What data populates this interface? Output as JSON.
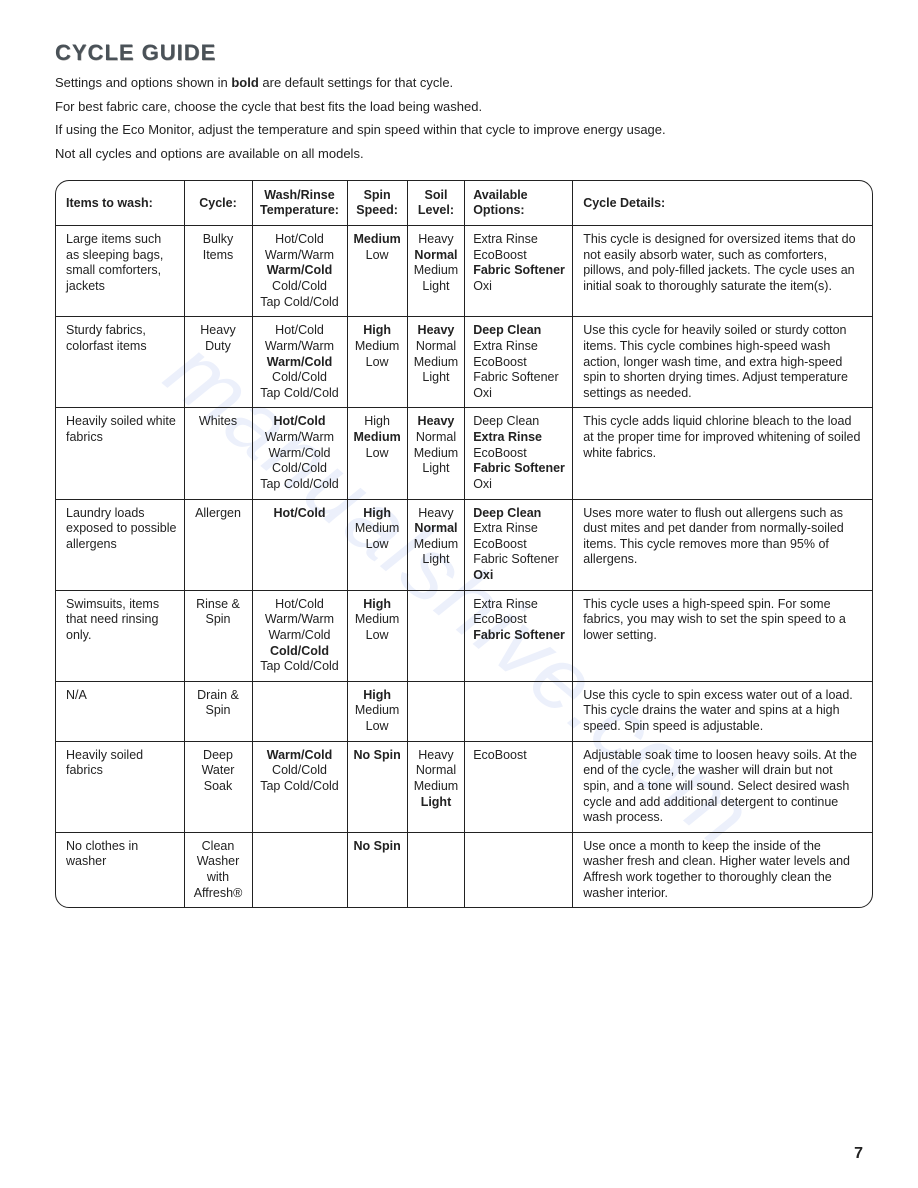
{
  "watermark": "manualshive.com",
  "page_number": "7",
  "title": "CYCLE GUIDE",
  "intro": {
    "l1a": "Settings and options shown in ",
    "l1b": "bold",
    "l1c": " are default settings for that cycle.",
    "l2": "For best fabric care, choose the cycle that best fits the load being washed.",
    "l3": "If using the Eco Monitor, adjust the temperature and spin speed within that cycle to improve energy usage.",
    "l4": "Not all cycles and options are available on all models."
  },
  "headers": {
    "items": "Items to wash:",
    "cycle": "Cycle:",
    "temp": "Wash/Rinse Temperature:",
    "spin": "Spin Speed:",
    "soil": "Soil Level:",
    "opts": "Available Options:",
    "details": "Cycle Details:"
  },
  "rows": [
    {
      "items": "Large items such as sleeping bags, small comforters, jackets",
      "cycle": "Bulky Items",
      "temp": [
        {
          "t": "Hot/Cold",
          "b": false
        },
        {
          "t": "Warm/Warm",
          "b": false
        },
        {
          "t": "Warm/Cold",
          "b": true
        },
        {
          "t": "Cold/Cold",
          "b": false
        },
        {
          "t": "Tap Cold/Cold",
          "b": false
        }
      ],
      "spin": [
        {
          "t": "Medium",
          "b": true
        },
        {
          "t": "Low",
          "b": false
        }
      ],
      "soil": [
        {
          "t": "Heavy",
          "b": false
        },
        {
          "t": "Normal",
          "b": true
        },
        {
          "t": "Medium",
          "b": false
        },
        {
          "t": "Light",
          "b": false
        }
      ],
      "opts": [
        {
          "t": "Extra Rinse",
          "b": false
        },
        {
          "t": "EcoBoost",
          "b": false
        },
        {
          "t": "Fabric Softener",
          "b": true
        },
        {
          "t": "Oxi",
          "b": false
        }
      ],
      "details": "This cycle is designed for oversized items that do not easily absorb water, such as comforters, pillows, and poly-filled jackets. The cycle uses an initial soak to thoroughly saturate the item(s)."
    },
    {
      "items": "Sturdy fabrics, colorfast items",
      "cycle": "Heavy Duty",
      "temp": [
        {
          "t": "Hot/Cold",
          "b": false
        },
        {
          "t": "Warm/Warm",
          "b": false
        },
        {
          "t": "Warm/Cold",
          "b": true
        },
        {
          "t": "Cold/Cold",
          "b": false
        },
        {
          "t": "Tap Cold/Cold",
          "b": false
        }
      ],
      "spin": [
        {
          "t": "High",
          "b": true
        },
        {
          "t": "Medium",
          "b": false
        },
        {
          "t": "Low",
          "b": false
        }
      ],
      "soil": [
        {
          "t": "Heavy",
          "b": true
        },
        {
          "t": "Normal",
          "b": false
        },
        {
          "t": "Medium",
          "b": false
        },
        {
          "t": "Light",
          "b": false
        }
      ],
      "opts": [
        {
          "t": "Deep Clean",
          "b": true
        },
        {
          "t": "Extra Rinse",
          "b": false
        },
        {
          "t": "EcoBoost",
          "b": false
        },
        {
          "t": "Fabric Softener",
          "b": false
        },
        {
          "t": "Oxi",
          "b": false
        }
      ],
      "details": "Use this cycle for heavily soiled or sturdy cotton items. This cycle combines high-speed wash action, longer wash time, and extra high-speed spin to shorten drying times. Adjust temperature settings as needed."
    },
    {
      "items": "Heavily soiled white fabrics",
      "cycle": "Whites",
      "temp": [
        {
          "t": "Hot/Cold",
          "b": true
        },
        {
          "t": "Warm/Warm",
          "b": false
        },
        {
          "t": "Warm/Cold",
          "b": false
        },
        {
          "t": "Cold/Cold",
          "b": false
        },
        {
          "t": "Tap Cold/Cold",
          "b": false
        }
      ],
      "spin": [
        {
          "t": "High",
          "b": false
        },
        {
          "t": "Medium",
          "b": true
        },
        {
          "t": "Low",
          "b": false
        }
      ],
      "soil": [
        {
          "t": "Heavy",
          "b": true
        },
        {
          "t": "Normal",
          "b": false
        },
        {
          "t": "Medium",
          "b": false
        },
        {
          "t": "Light",
          "b": false
        }
      ],
      "opts": [
        {
          "t": "Deep Clean",
          "b": false
        },
        {
          "t": "Extra Rinse",
          "b": true
        },
        {
          "t": "EcoBoost",
          "b": false
        },
        {
          "t": "Fabric Softener",
          "b": true
        },
        {
          "t": "Oxi",
          "b": false
        }
      ],
      "details": "This cycle adds liquid chlorine bleach to the load at the proper time for improved whitening of soiled white fabrics."
    },
    {
      "items": "Laundry loads exposed to possible allergens",
      "cycle": "Allergen",
      "temp": [
        {
          "t": "Hot/Cold",
          "b": true
        }
      ],
      "spin": [
        {
          "t": "High",
          "b": true
        },
        {
          "t": "Medium",
          "b": false
        },
        {
          "t": "Low",
          "b": false
        }
      ],
      "soil": [
        {
          "t": "Heavy",
          "b": false
        },
        {
          "t": "Normal",
          "b": true
        },
        {
          "t": "Medium",
          "b": false
        },
        {
          "t": "Light",
          "b": false
        }
      ],
      "opts": [
        {
          "t": "Deep Clean",
          "b": true
        },
        {
          "t": "Extra Rinse",
          "b": false
        },
        {
          "t": "EcoBoost",
          "b": false
        },
        {
          "t": "Fabric Softener",
          "b": false
        },
        {
          "t": "Oxi",
          "b": true
        }
      ],
      "details": "Uses more water to flush out allergens such as dust mites and pet dander from normally-soiled items. This cycle removes more than 95% of allergens."
    },
    {
      "items": "Swimsuits, items that need rinsing only.",
      "cycle": "Rinse & Spin",
      "temp": [
        {
          "t": "Hot/Cold",
          "b": false
        },
        {
          "t": "Warm/Warm",
          "b": false
        },
        {
          "t": "Warm/Cold",
          "b": false
        },
        {
          "t": "Cold/Cold",
          "b": true
        },
        {
          "t": "Tap Cold/Cold",
          "b": false
        }
      ],
      "spin": [
        {
          "t": "High",
          "b": true
        },
        {
          "t": "Medium",
          "b": false
        },
        {
          "t": "Low",
          "b": false
        }
      ],
      "soil": [],
      "opts": [
        {
          "t": "Extra Rinse",
          "b": false
        },
        {
          "t": "EcoBoost",
          "b": false
        },
        {
          "t": "Fabric Softener",
          "b": true
        }
      ],
      "details": "This cycle uses a high-speed spin. For some fabrics, you may wish to set the spin speed to a lower setting."
    },
    {
      "items": "N/A",
      "cycle": "Drain & Spin",
      "temp": [],
      "spin": [
        {
          "t": "High",
          "b": true
        },
        {
          "t": "Medium",
          "b": false
        },
        {
          "t": "Low",
          "b": false
        }
      ],
      "soil": [],
      "opts": [],
      "details": "Use this cycle to spin excess water out of a load. This cycle drains the water and spins at a high speed. Spin speed is adjustable."
    },
    {
      "items": "Heavily soiled fabrics",
      "cycle": "Deep Water Soak",
      "temp": [
        {
          "t": "Warm/Cold",
          "b": true
        },
        {
          "t": "Cold/Cold",
          "b": false
        },
        {
          "t": "Tap Cold/Cold",
          "b": false
        }
      ],
      "spin": [
        {
          "t": "No Spin",
          "b": true
        }
      ],
      "soil": [
        {
          "t": "Heavy",
          "b": false
        },
        {
          "t": "Normal",
          "b": false
        },
        {
          "t": "Medium",
          "b": false
        },
        {
          "t": "Light",
          "b": true
        }
      ],
      "opts": [
        {
          "t": "EcoBoost",
          "b": false
        }
      ],
      "details": "Adjustable soak time to loosen heavy soils. At the end of the cycle, the washer will drain but not spin, and a tone will sound. Select desired wash cycle and add additional detergent to continue wash process."
    },
    {
      "items": "No clothes in washer",
      "cycle": "Clean Washer with Affresh®",
      "temp": [],
      "spin": [
        {
          "t": "No Spin",
          "b": true
        }
      ],
      "soil": [],
      "opts": [],
      "details": "Use once a month to keep the inside of the washer fresh and clean. Higher water levels and Affresh work together to thoroughly clean the washer interior."
    }
  ]
}
